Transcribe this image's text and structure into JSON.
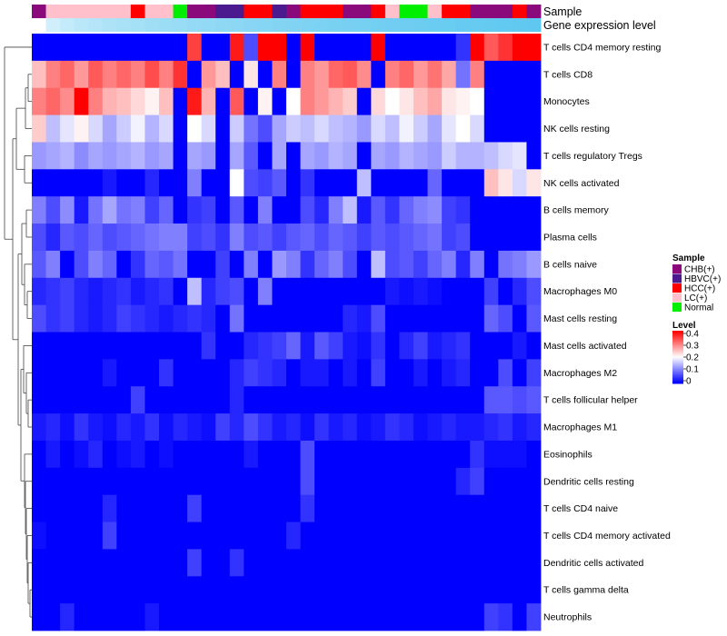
{
  "chart_data": {
    "type": "heatmap",
    "title": "",
    "annotation_labels": [
      "Sample",
      "Gene expression level"
    ],
    "rows": [
      "T cells CD4 memory resting",
      "T cells CD8",
      "Monocytes",
      "NK cells resting",
      "T cells regulatory  Tregs",
      "NK cells activated",
      "B cells memory",
      "Plasma cells",
      "B cells naive",
      "Macrophages M0",
      "Mast cells resting",
      "Mast cells activated",
      "Macrophages M2",
      "T cells follicular helper",
      "Macrophages M1",
      "Eosinophils",
      "Dendritic cells resting",
      "T cells CD4 naive",
      "T cells CD4 memory activated",
      "Dendritic cells activated",
      "T cells gamma delta",
      "Neutrophils"
    ],
    "columns": 36,
    "sample_track": [
      "CHB(+)",
      "LC(+)",
      "LC(+)",
      "LC(+)",
      "LC(+)",
      "LC(+)",
      "LC(+)",
      "HCC(+)",
      "LC(+)",
      "LC(+)",
      "Normal",
      "CHB(+)",
      "CHB(+)",
      "HBVC(+)",
      "HBVC(+)",
      "HCC(+)",
      "HCC(+)",
      "HBVC(+)",
      "CHB(+)",
      "HCC(+)",
      "HCC(+)",
      "HCC(+)",
      "CHB(+)",
      "CHB(+)",
      "HCC(+)",
      "LC(+)",
      "Normal",
      "Normal",
      "LC(+)",
      "HCC(+)",
      "HCC(+)",
      "CHB(+)",
      "CHB(+)",
      "CHB(+)",
      "HCC(+)",
      "CHB(+)"
    ],
    "expression_track": [
      0.005,
      0.01,
      0.015,
      0.02,
      0.025,
      0.03,
      0.035,
      0.04,
      0.045,
      0.05,
      0.055,
      0.06,
      0.065,
      0.07,
      0.075,
      0.08,
      0.085,
      0.09,
      0.095,
      0.1,
      0.105,
      0.11,
      0.115,
      0.12,
      0.125,
      0.13,
      0.135,
      0.14,
      0.145,
      0.15,
      0.155,
      0.16,
      0.165,
      0.17,
      0.175,
      0.18
    ],
    "values": [
      [
        0,
        0,
        0,
        0,
        0,
        0,
        0,
        0,
        0,
        0,
        0,
        0.35,
        0,
        0,
        0.38,
        0.06,
        0.4,
        0.4,
        0,
        0.4,
        0,
        0,
        0,
        0,
        0.4,
        0,
        0,
        0,
        0,
        0,
        0.04,
        0.4,
        0.33,
        0.36,
        0.4,
        0.4
      ],
      [
        0.25,
        0.3,
        0.32,
        0.28,
        0.33,
        0.3,
        0.32,
        0.3,
        0.34,
        0.3,
        0.36,
        0,
        0.28,
        0.25,
        0,
        0.22,
        0,
        0.3,
        0,
        0.3,
        0.28,
        0.32,
        0.33,
        0.29,
        0,
        0.3,
        0.32,
        0.28,
        0.31,
        0.27,
        0.09,
        0.3,
        0,
        0,
        0,
        0
      ],
      [
        0.3,
        0.32,
        0.29,
        0.4,
        0.3,
        0.26,
        0.25,
        0.23,
        0.21,
        0.25,
        0,
        0.38,
        0.26,
        0,
        0.33,
        0,
        0.21,
        0,
        0.2,
        0.3,
        0.28,
        0.26,
        0.24,
        0,
        0.23,
        0.2,
        0.22,
        0.25,
        0.27,
        0.22,
        0.21,
        0.2,
        0,
        0,
        0,
        0
      ],
      [
        0.24,
        0.15,
        0.18,
        0.21,
        0.17,
        0.13,
        0.16,
        0.19,
        0.14,
        0.17,
        0,
        0.2,
        0.17,
        0,
        0.16,
        0.09,
        0.06,
        0.13,
        0.16,
        0.15,
        0.17,
        0.15,
        0.14,
        0.12,
        0.17,
        0.15,
        0.19,
        0.16,
        0.13,
        0.18,
        0.2,
        0.17,
        0,
        0,
        0,
        0
      ],
      [
        0.12,
        0.13,
        0.14,
        0.11,
        0.13,
        0.12,
        0.13,
        0.14,
        0.12,
        0.13,
        0,
        0.13,
        0.12,
        0,
        0.13,
        0.07,
        0,
        0.13,
        0,
        0.13,
        0.12,
        0.14,
        0.13,
        0,
        0.13,
        0.12,
        0.14,
        0.13,
        0.12,
        0.16,
        0.14,
        0.14,
        0.15,
        0.17,
        0.18,
        0
      ],
      [
        0,
        0,
        0,
        0,
        0,
        0.02,
        0,
        0,
        0.03,
        0,
        0,
        0.1,
        0,
        0,
        0.2,
        0.06,
        0.05,
        0.07,
        0,
        0.04,
        0,
        0,
        0,
        0.15,
        0,
        0,
        0,
        0,
        0.08,
        0,
        0,
        0,
        0.25,
        0.22,
        0.17,
        0.22
      ],
      [
        0.1,
        0.06,
        0.11,
        0.02,
        0.09,
        0.13,
        0.09,
        0.1,
        0.05,
        0.08,
        0,
        0.04,
        0.05,
        0,
        0.07,
        0,
        0.1,
        0,
        0,
        0.06,
        0.03,
        0.1,
        0.15,
        0.02,
        0.07,
        0.04,
        0.08,
        0.1,
        0.11,
        0.05,
        0.04,
        0,
        0,
        0,
        0,
        0
      ],
      [
        0.06,
        0.03,
        0.07,
        0.06,
        0.08,
        0.06,
        0.07,
        0.08,
        0.09,
        0.1,
        0.1,
        0.05,
        0.06,
        0.04,
        0.1,
        0.06,
        0.07,
        0.05,
        0.07,
        0.08,
        0.06,
        0.08,
        0.07,
        0.05,
        0.07,
        0.06,
        0.07,
        0.08,
        0.09,
        0.05,
        0.06,
        0,
        0,
        0,
        0,
        0
      ],
      [
        0.07,
        0.1,
        0,
        0.06,
        0.1,
        0.08,
        0,
        0.04,
        0.08,
        0.07,
        0.09,
        0,
        0,
        0.05,
        0,
        0.1,
        0,
        0.12,
        0.1,
        0.04,
        0.08,
        0.1,
        0.06,
        0,
        0.15,
        0.06,
        0.07,
        0.05,
        0.08,
        0.1,
        0.03,
        0.1,
        0,
        0.09,
        0.1,
        0.12
      ],
      [
        0.03,
        0.04,
        0.05,
        0.03,
        0.02,
        0.03,
        0.04,
        0.02,
        0.03,
        0.04,
        0,
        0.15,
        0.03,
        0.05,
        0.06,
        0,
        0.1,
        0,
        0,
        0,
        0,
        0,
        0,
        0,
        0,
        0.02,
        0.01,
        0.02,
        0.01,
        0,
        0,
        0,
        0.05,
        0,
        0.03,
        0.06
      ],
      [
        0.06,
        0.04,
        0.05,
        0.03,
        0.02,
        0.03,
        0.05,
        0.04,
        0.03,
        0.02,
        0.03,
        0.04,
        0.03,
        0,
        0.09,
        0,
        0,
        0,
        0,
        0,
        0,
        0,
        0.03,
        0.02,
        0.06,
        0,
        0,
        0,
        0,
        0,
        0,
        0,
        0.08,
        0.06,
        0,
        0.07
      ],
      [
        0,
        0,
        0,
        0,
        0,
        0,
        0,
        0,
        0,
        0,
        0,
        0,
        0.04,
        0,
        0,
        0.03,
        0.04,
        0.05,
        0.08,
        0.02,
        0.07,
        0.05,
        0.02,
        0.01,
        0.04,
        0,
        0.03,
        0.05,
        0.02,
        0.03,
        0.04,
        0,
        0,
        0,
        0.02,
        0
      ],
      [
        0,
        0,
        0,
        0,
        0,
        0.02,
        0,
        0,
        0,
        0.04,
        0,
        0,
        0,
        0,
        0.03,
        0.05,
        0.04,
        0.03,
        0,
        0.02,
        0.02,
        0,
        0.02,
        0,
        0.05,
        0,
        0,
        0.02,
        0,
        0.02,
        0.03,
        0,
        0,
        0.06,
        0,
        0.05
      ],
      [
        0,
        0,
        0,
        0,
        0,
        0,
        0,
        0.05,
        0,
        0,
        0,
        0,
        0,
        0,
        0.03,
        0,
        0,
        0,
        0,
        0,
        0,
        0,
        0,
        0,
        0,
        0,
        0,
        0,
        0,
        0,
        0,
        0,
        0.07,
        0.07,
        0.06,
        0.07
      ],
      [
        0.02,
        0.03,
        0.01,
        0.04,
        0.02,
        0.01,
        0.03,
        0.02,
        0.04,
        0.01,
        0.03,
        0.02,
        0.01,
        0.05,
        0.03,
        0.06,
        0.04,
        0.02,
        0.03,
        0.01,
        0.04,
        0.02,
        0.03,
        0.01,
        0.02,
        0.04,
        0.03,
        0.01,
        0.02,
        0.03,
        0.02,
        0.02,
        0.03,
        0.04,
        0.02,
        0.03
      ],
      [
        0,
        0.02,
        0,
        0.01,
        0.03,
        0,
        0.01,
        0.02,
        0,
        0.01,
        0,
        0,
        0,
        0,
        0,
        0.02,
        0,
        0,
        0,
        0.06,
        0,
        0,
        0,
        0,
        0,
        0,
        0,
        0,
        0,
        0,
        0,
        0.04,
        0.01,
        0.01,
        0.01,
        0
      ],
      [
        0,
        0,
        0,
        0,
        0,
        0,
        0,
        0,
        0,
        0,
        0,
        0,
        0,
        0,
        0,
        0,
        0,
        0,
        0,
        0.06,
        0,
        0,
        0,
        0,
        0,
        0,
        0,
        0,
        0,
        0,
        0.03,
        0.05,
        0,
        0,
        0,
        0
      ],
      [
        0,
        0,
        0,
        0,
        0,
        0.03,
        0,
        0,
        0,
        0,
        0,
        0.05,
        0,
        0,
        0,
        0,
        0,
        0,
        0,
        0.04,
        0,
        0,
        0,
        0,
        0,
        0,
        0,
        0,
        0,
        0,
        0,
        0,
        0,
        0,
        0,
        0
      ],
      [
        0.01,
        0,
        0,
        0,
        0,
        0.05,
        0,
        0,
        0,
        0,
        0,
        0,
        0,
        0,
        0,
        0,
        0,
        0,
        0.03,
        0,
        0,
        0,
        0,
        0,
        0,
        0,
        0,
        0,
        0,
        0,
        0,
        0,
        0,
        0,
        0,
        0
      ],
      [
        0,
        0,
        0,
        0,
        0,
        0,
        0,
        0,
        0,
        0,
        0,
        0.05,
        0,
        0,
        0.04,
        0,
        0,
        0,
        0,
        0,
        0,
        0,
        0,
        0,
        0,
        0,
        0,
        0,
        0,
        0,
        0,
        0,
        0,
        0,
        0,
        0
      ],
      [
        0,
        0,
        0,
        0,
        0,
        0,
        0,
        0,
        0,
        0,
        0,
        0,
        0,
        0,
        0,
        0,
        0,
        0,
        0,
        0,
        0,
        0,
        0,
        0,
        0,
        0,
        0,
        0,
        0,
        0,
        0,
        0,
        0,
        0,
        0,
        0
      ],
      [
        0,
        0,
        0.03,
        0,
        0,
        0,
        0,
        0,
        0.02,
        0,
        0,
        0,
        0,
        0,
        0,
        0,
        0,
        0,
        0,
        0,
        0,
        0,
        0,
        0,
        0,
        0,
        0,
        0,
        0,
        0,
        0,
        0,
        0.05,
        0.04,
        0,
        0.05
      ]
    ],
    "value_range": [
      0,
      0.4
    ],
    "legend": {
      "sample": {
        "title": "Sample",
        "entries": [
          {
            "label": "CHB(+)",
            "color": "#8b0a7b"
          },
          {
            "label": "HBVC(+)",
            "color": "#4b1a8f"
          },
          {
            "label": "HCC(+)",
            "color": "#ff0000"
          },
          {
            "label": "LC(+)",
            "color": "#ffc0cb"
          },
          {
            "label": "Normal",
            "color": "#00ee00"
          }
        ]
      },
      "level": {
        "title": "Level",
        "ticks": [
          "0.4",
          "0.3",
          "0.2",
          "0.1",
          "0"
        ],
        "colors": [
          "#0000ff",
          "#ffffff",
          "#ff0000"
        ]
      }
    },
    "expression_track_colors": [
      "#ffffff",
      "#5fc8f0"
    ]
  }
}
